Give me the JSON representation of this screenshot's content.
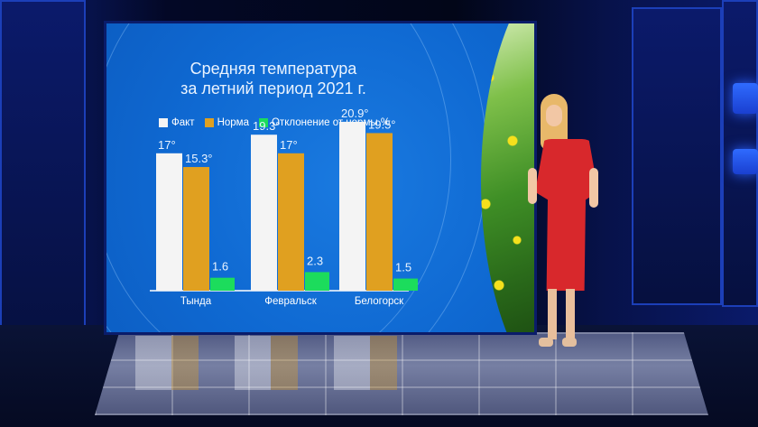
{
  "colors": {
    "fact": "#f4f4f4",
    "norm": "#e0a020",
    "deviation": "#1cdc5c",
    "screen": "#0b63c9"
  },
  "chart_data": {
    "type": "bar",
    "title_lines": [
      "Средняя температура",
      "за летний период 2021 г."
    ],
    "categories": [
      "Тында",
      "Февральск",
      "Белогорск"
    ],
    "series": [
      {
        "name": "Факт",
        "values": [
          17,
          19.3,
          20.9
        ],
        "labels": [
          "17°",
          "19.3°",
          "20.9°"
        ]
      },
      {
        "name": "Норма",
        "values": [
          15.3,
          17,
          19.5
        ],
        "labels": [
          "15.3°",
          "17°",
          "19.5°"
        ]
      },
      {
        "name": "Отклонение от нормы %",
        "values": [
          1.6,
          2.3,
          1.5
        ],
        "labels": [
          "1.6",
          "2.3",
          "1.5"
        ]
      }
    ],
    "xlabel": "",
    "ylabel": "",
    "ylim": [
      0,
      21
    ],
    "grid": false,
    "legend_position": "top"
  }
}
